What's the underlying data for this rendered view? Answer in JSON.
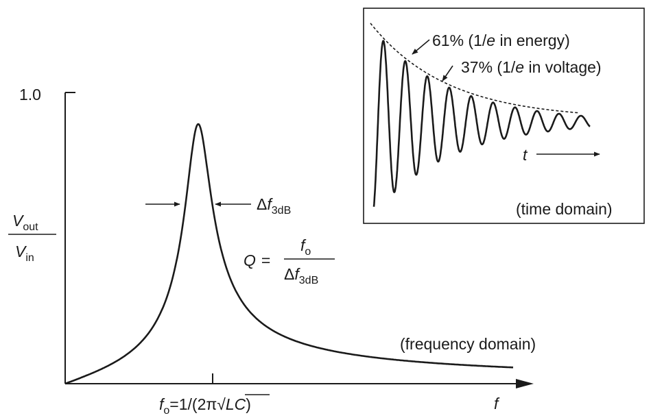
{
  "frequency_plot": {
    "y_tick": "1.0",
    "y_label": {
      "num": "V",
      "num_sub": "out",
      "den": "V",
      "den_sub": "in"
    },
    "x_label": "f",
    "center_freq_label": {
      "f": "f",
      "sub": "o",
      "expr_start": "=1/(2π",
      "sqrt": "√",
      "lc": "LC",
      "close": ")"
    },
    "bandwidth_label": {
      "delta": "Δ",
      "f": "f",
      "sub": "3dB"
    },
    "q_formula": {
      "q": "Q",
      "eq": "=",
      "num_f": "f",
      "num_sub": "o",
      "den_delta": "Δ",
      "den_f": "f",
      "den_sub": "3dB"
    },
    "domain_caption": "(frequency domain)"
  },
  "time_inset": {
    "annotation_energy": {
      "pre": "61% (1/",
      "e": "e",
      "post": " in energy)"
    },
    "annotation_voltage": {
      "pre": "37% (1/",
      "e": "e",
      "post": " in voltage)"
    },
    "time_label": "t",
    "domain_caption": "(time domain)"
  },
  "colors": {
    "ink": "#1a1a1a",
    "background": "#ffffff"
  }
}
